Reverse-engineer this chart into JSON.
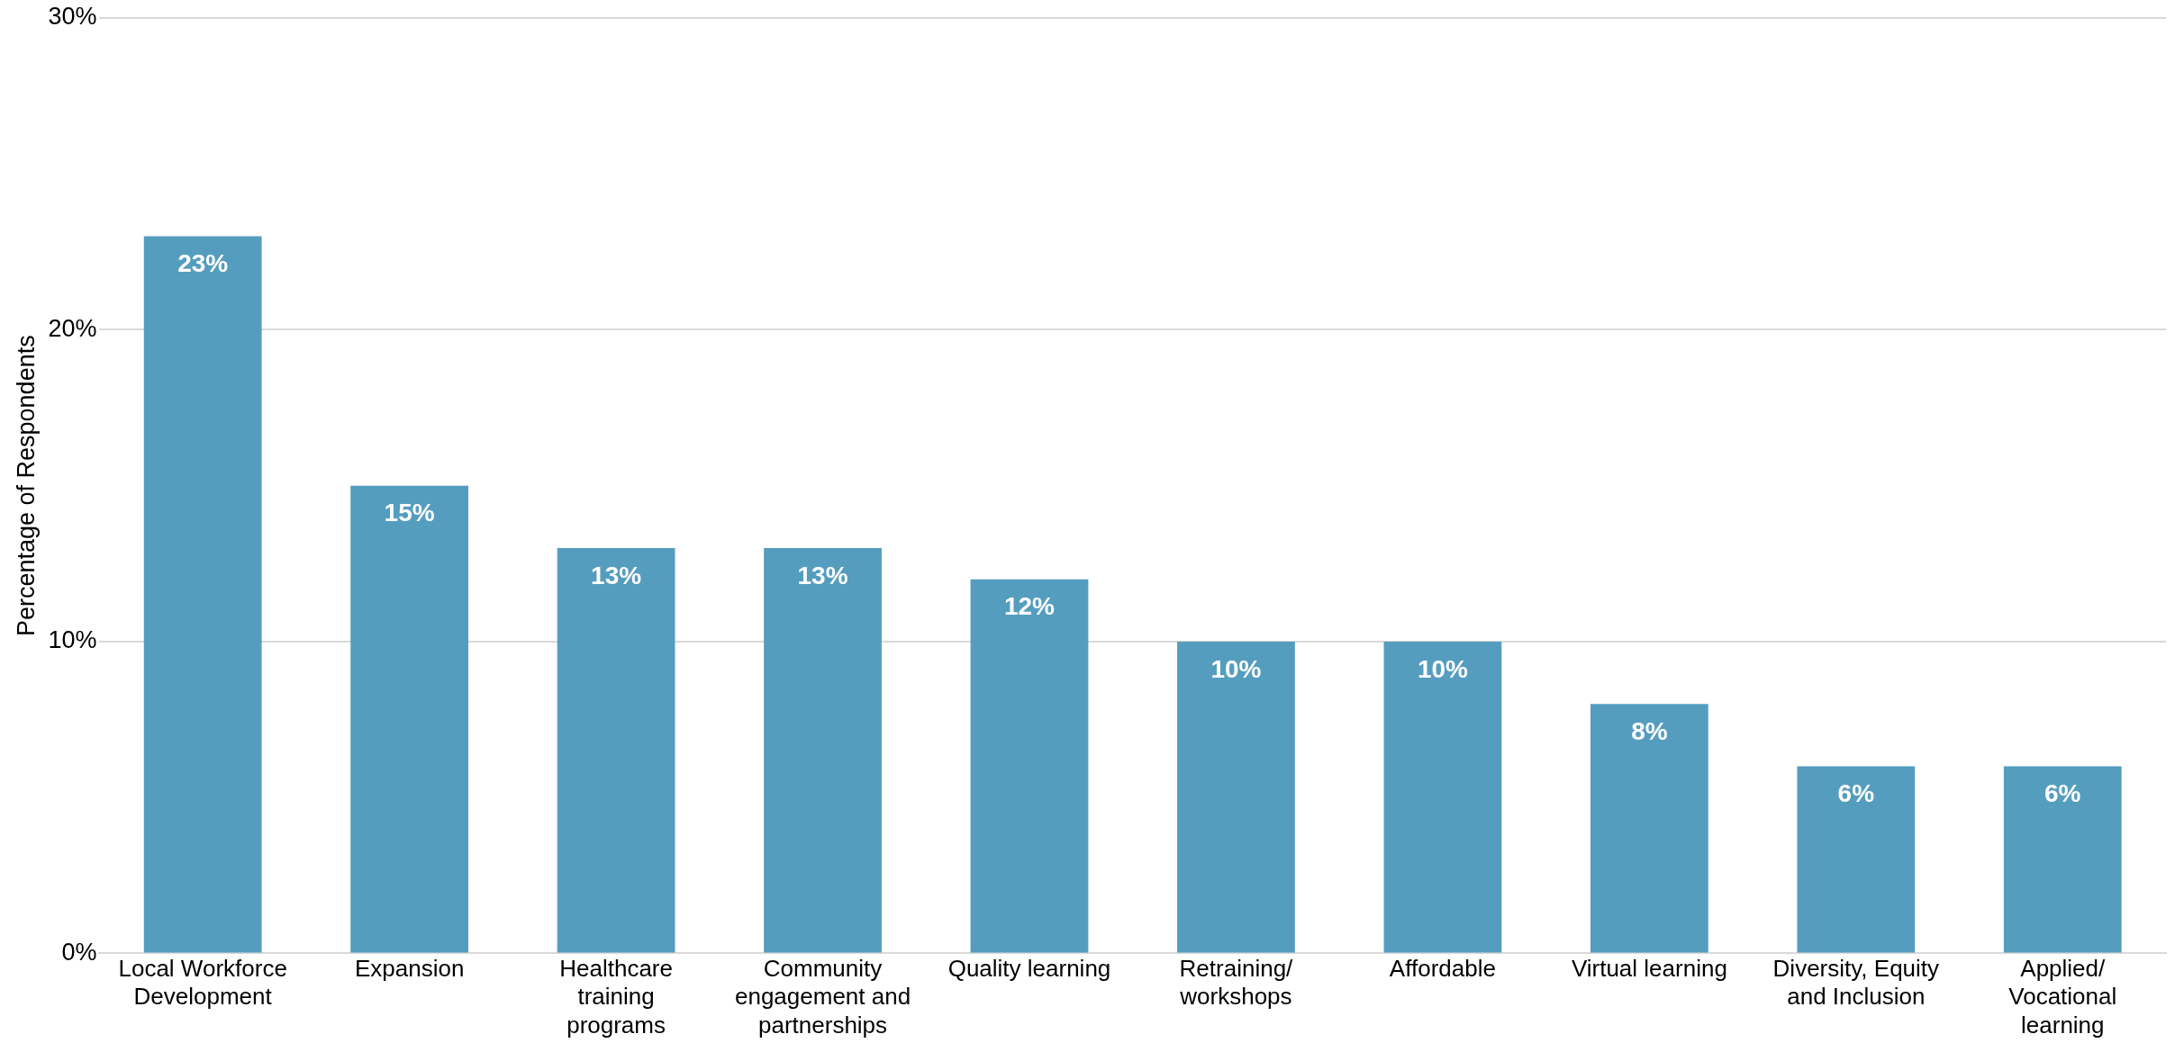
{
  "chart_data": {
    "type": "bar",
    "ylabel": "Percentage of Respondents",
    "categories": [
      "Local Workforce Development",
      "Expansion",
      "Healthcare training programs",
      "Community engagement and partnerships",
      "Quality learning",
      "Retraining/ workshops",
      "Affordable",
      "Virtual learning",
      "Diversity, Equity and Inclusion",
      "Applied/ Vocational learning"
    ],
    "values": [
      23,
      15,
      13,
      13,
      12,
      10,
      10,
      8,
      6,
      6
    ],
    "color": "#559dbf",
    "ylim": [
      0,
      30
    ],
    "yticks": [
      {
        "value": 0,
        "label": "0%"
      },
      {
        "value": 10,
        "label": "10%"
      },
      {
        "value": 20,
        "label": "20%"
      },
      {
        "value": 30,
        "label": "30%"
      }
    ],
    "value_labels": [
      "23%",
      "15%",
      "13%",
      "13%",
      "12%",
      "10%",
      "10%",
      "8%",
      "6%",
      "6%"
    ],
    "grid": "y",
    "legend": false
  }
}
